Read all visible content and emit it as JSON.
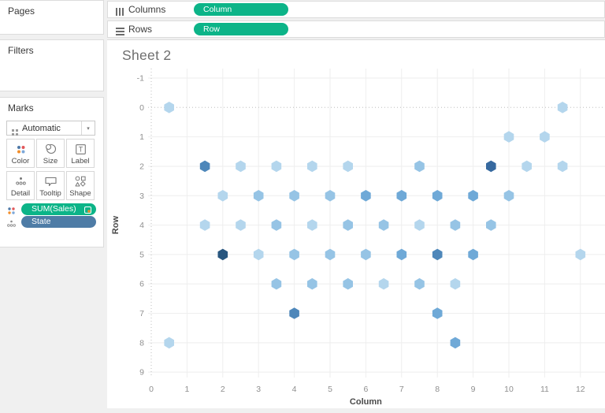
{
  "colors": {
    "pill_green": "#0cb488",
    "pill_blue": "#4e7ca6",
    "grid": "#eeeeee",
    "zero_line": "#bdbdbd",
    "tick_label": "#8f8f8f",
    "axis_title": "#4a4a4a"
  },
  "sidebar": {
    "pages_label": "Pages",
    "filters_label": "Filters",
    "marks": {
      "title": "Marks",
      "mark_type": "Automatic",
      "dropdown_caret_icon": "▾",
      "buttons": [
        {
          "label": "Color",
          "icon": "color-icon"
        },
        {
          "label": "Size",
          "icon": "size-icon"
        },
        {
          "label": "Label",
          "icon": "label-icon"
        },
        {
          "label": "Detail",
          "icon": "detail-icon"
        },
        {
          "label": "Tooltip",
          "icon": "tooltip-icon"
        },
        {
          "label": "Shape",
          "icon": "shape-icon"
        }
      ],
      "pills": [
        {
          "label": "SUM(Sales)",
          "role": "color",
          "type": "measure"
        },
        {
          "label": "State",
          "role": "detail",
          "type": "dimension"
        }
      ]
    }
  },
  "shelves": {
    "columns_label": "Columns",
    "columns_pill": "Column",
    "rows_label": "Rows",
    "rows_pill": "Row"
  },
  "sheet": {
    "title": "Sheet 2"
  },
  "chart_data": {
    "type": "scatter",
    "mark_shape": "hexagon",
    "title": "Sheet 2",
    "xlabel": "Column",
    "ylabel": "Row",
    "x_ticks": [
      0,
      1,
      2,
      3,
      4,
      5,
      6,
      7,
      8,
      9,
      10,
      11,
      12
    ],
    "y_ticks": [
      -1,
      0,
      1,
      2,
      3,
      4,
      5,
      6,
      7,
      8,
      9
    ],
    "xlim": [
      -0.1,
      12.7
    ],
    "ylim": [
      9.2,
      -1.3
    ],
    "y_inverted": true,
    "grid": true,
    "palette": {
      "l1": "#b4d6ed",
      "l2": "#96c4e5",
      "m1": "#6fa9d7",
      "m2": "#4e87ba",
      "d2": "#36699f",
      "d1": "#28567f"
    },
    "points": [
      {
        "col": 0.5,
        "row": 0,
        "shade": "l1"
      },
      {
        "col": 11.5,
        "row": 0,
        "shade": "l1"
      },
      {
        "col": 10,
        "row": 1,
        "shade": "l1"
      },
      {
        "col": 11,
        "row": 1,
        "shade": "l1"
      },
      {
        "col": 1.5,
        "row": 2,
        "shade": "m2"
      },
      {
        "col": 2.5,
        "row": 2,
        "shade": "l1"
      },
      {
        "col": 3.5,
        "row": 2,
        "shade": "l1"
      },
      {
        "col": 4.5,
        "row": 2,
        "shade": "l1"
      },
      {
        "col": 5.5,
        "row": 2,
        "shade": "l1"
      },
      {
        "col": 7.5,
        "row": 2,
        "shade": "l2"
      },
      {
        "col": 9.5,
        "row": 2,
        "shade": "d2"
      },
      {
        "col": 10.5,
        "row": 2,
        "shade": "l1"
      },
      {
        "col": 11.5,
        "row": 2,
        "shade": "l1"
      },
      {
        "col": 2,
        "row": 3,
        "shade": "l1"
      },
      {
        "col": 3,
        "row": 3,
        "shade": "l2"
      },
      {
        "col": 4,
        "row": 3,
        "shade": "l2"
      },
      {
        "col": 5,
        "row": 3,
        "shade": "l2"
      },
      {
        "col": 6,
        "row": 3,
        "shade": "m1"
      },
      {
        "col": 7,
        "row": 3,
        "shade": "m1"
      },
      {
        "col": 8,
        "row": 3,
        "shade": "m1"
      },
      {
        "col": 9,
        "row": 3,
        "shade": "m1"
      },
      {
        "col": 10,
        "row": 3,
        "shade": "l2"
      },
      {
        "col": 1.5,
        "row": 4,
        "shade": "l1"
      },
      {
        "col": 2.5,
        "row": 4,
        "shade": "l1"
      },
      {
        "col": 3.5,
        "row": 4,
        "shade": "l2"
      },
      {
        "col": 4.5,
        "row": 4,
        "shade": "l1"
      },
      {
        "col": 5.5,
        "row": 4,
        "shade": "l2"
      },
      {
        "col": 6.5,
        "row": 4,
        "shade": "l2"
      },
      {
        "col": 7.5,
        "row": 4,
        "shade": "l1"
      },
      {
        "col": 8.5,
        "row": 4,
        "shade": "l2"
      },
      {
        "col": 9.5,
        "row": 4,
        "shade": "l2"
      },
      {
        "col": 2,
        "row": 5,
        "shade": "d1"
      },
      {
        "col": 3,
        "row": 5,
        "shade": "l1"
      },
      {
        "col": 4,
        "row": 5,
        "shade": "l2"
      },
      {
        "col": 5,
        "row": 5,
        "shade": "l2"
      },
      {
        "col": 6,
        "row": 5,
        "shade": "l2"
      },
      {
        "col": 7,
        "row": 5,
        "shade": "m1"
      },
      {
        "col": 8,
        "row": 5,
        "shade": "m2"
      },
      {
        "col": 9,
        "row": 5,
        "shade": "m1"
      },
      {
        "col": 12,
        "row": 5,
        "shade": "l1"
      },
      {
        "col": 3.5,
        "row": 6,
        "shade": "l2"
      },
      {
        "col": 4.5,
        "row": 6,
        "shade": "l2"
      },
      {
        "col": 5.5,
        "row": 6,
        "shade": "l2"
      },
      {
        "col": 6.5,
        "row": 6,
        "shade": "l1"
      },
      {
        "col": 7.5,
        "row": 6,
        "shade": "l2"
      },
      {
        "col": 8.5,
        "row": 6,
        "shade": "l1"
      },
      {
        "col": 4,
        "row": 7,
        "shade": "m2"
      },
      {
        "col": 8,
        "row": 7,
        "shade": "m1"
      },
      {
        "col": 0.5,
        "row": 8,
        "shade": "l1"
      },
      {
        "col": 8.5,
        "row": 8,
        "shade": "m1"
      }
    ]
  }
}
